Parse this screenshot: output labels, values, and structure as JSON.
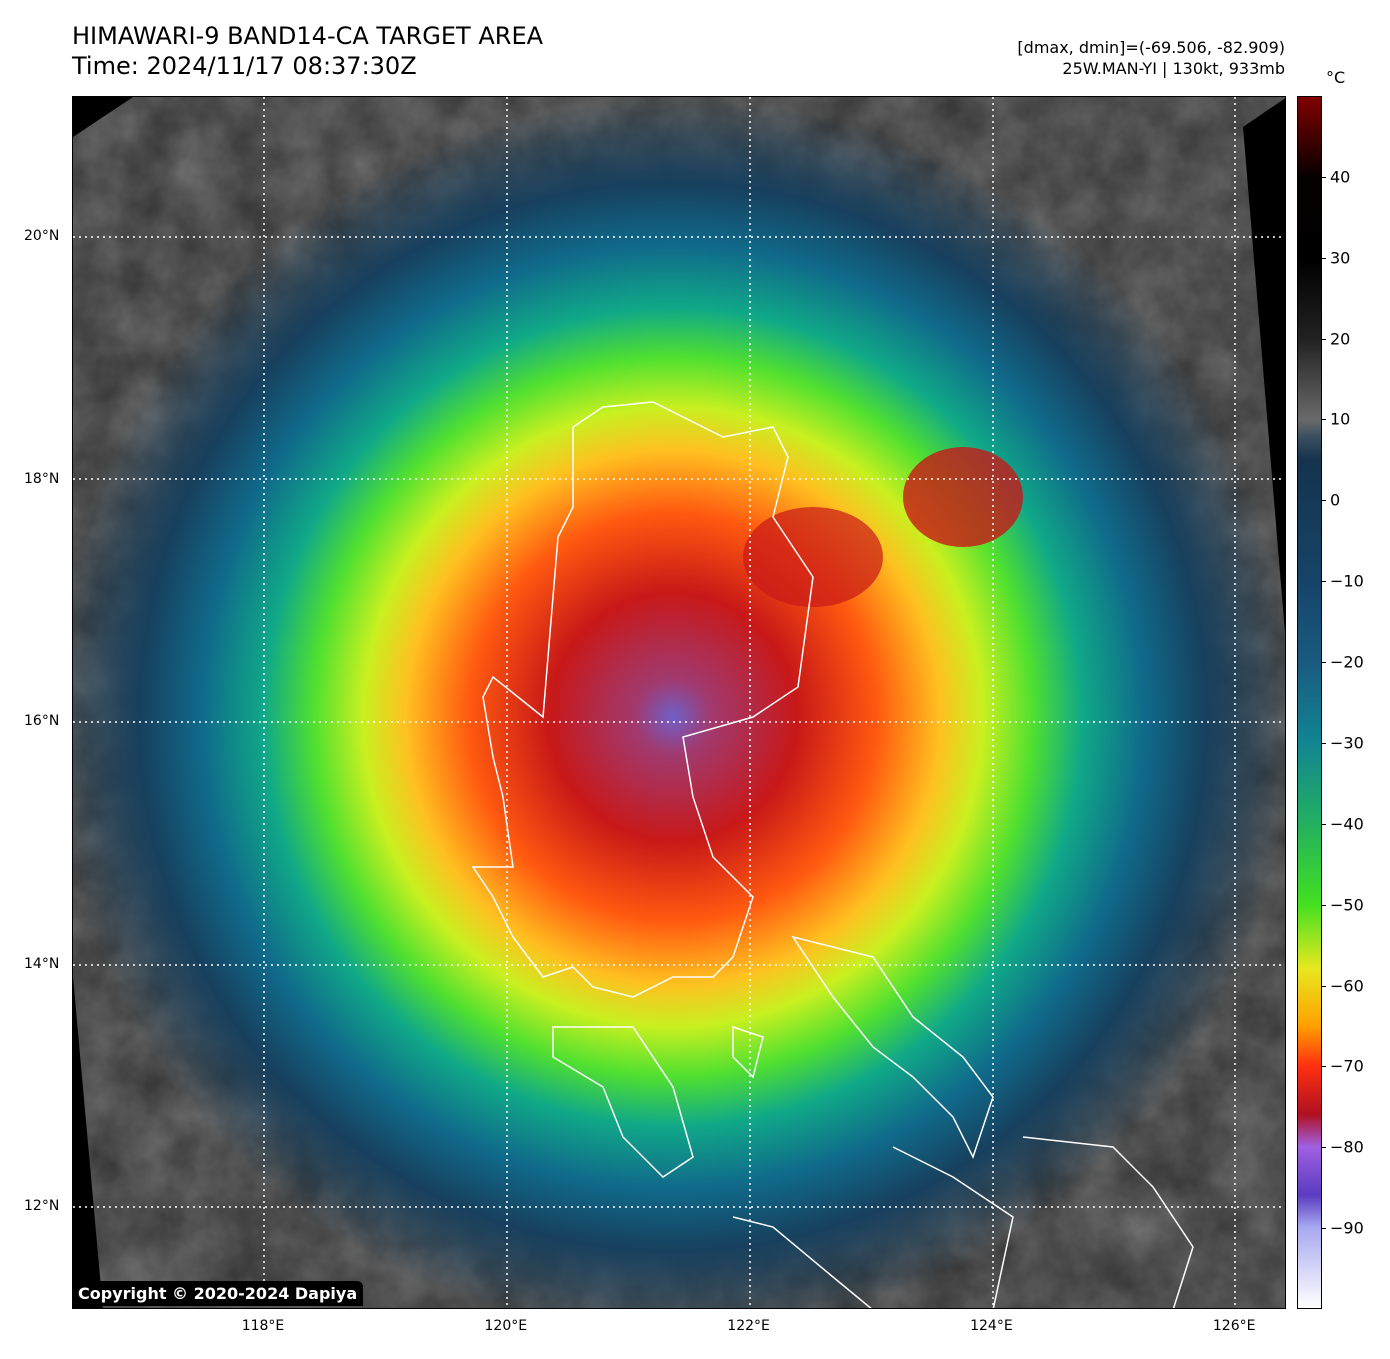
{
  "header": {
    "title": "HIMAWARI-9 BAND14-CA TARGET AREA",
    "time": "Time: 2024/11/17 08:37:30Z",
    "dminmax": "[dmax, dmin]=(-69.506, -82.909)",
    "storm": "25W.MAN-YI | 130kt, 933mb"
  },
  "colorbar": {
    "unit": "°C",
    "range": [
      -100,
      50
    ],
    "ticks": [
      "40",
      "30",
      "20",
      "10",
      "0",
      "−10",
      "−20",
      "−30",
      "−40",
      "−50",
      "−60",
      "−70",
      "−80",
      "−90"
    ],
    "tick_values": [
      40,
      30,
      20,
      10,
      0,
      -10,
      -20,
      -30,
      -40,
      -50,
      -60,
      -70,
      -80,
      -90
    ]
  },
  "axes": {
    "x_ticks": [
      "118°E",
      "120°E",
      "122°E",
      "124°E",
      "126°E"
    ],
    "x_values": [
      118,
      120,
      122,
      124,
      126
    ],
    "y_ticks": [
      "20°N",
      "18°N",
      "16°N",
      "14°N",
      "12°N"
    ],
    "y_values": [
      20,
      18,
      16,
      14,
      12
    ]
  },
  "copyright": "Copyright © 2020-2024 Dapiya"
}
